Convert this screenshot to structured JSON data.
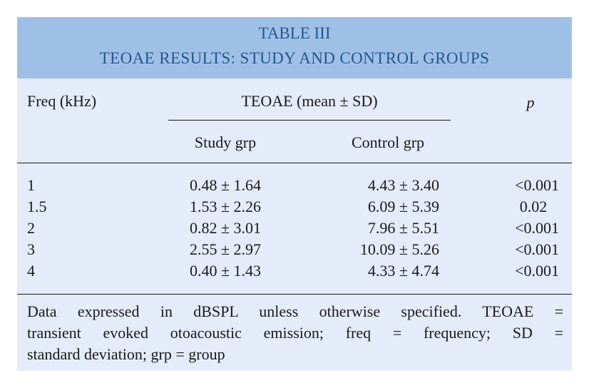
{
  "caption": {
    "line1": "TABLE III",
    "line2": "TEOAE RESULTS: STUDY AND CONTROL GROUPS"
  },
  "header": {
    "freq": "Freq (kHz)",
    "teoae_group": "TEOAE (mean ± SD)",
    "p": "p",
    "study": "Study grp",
    "control": "Control grp"
  },
  "rows": [
    {
      "freq": "1",
      "study": "0.48 ± 1.64",
      "control": "4.43 ± 3.40",
      "p": "<0.001"
    },
    {
      "freq": "1.5",
      "study": "1.53 ± 2.26",
      "control": "6.09 ± 5.39",
      "p": "0.02"
    },
    {
      "freq": "2",
      "study": "0.82 ± 3.01",
      "control": "7.96 ± 5.51",
      "p": "<0.001"
    },
    {
      "freq": "3",
      "study": "2.55 ± 2.97",
      "control": "10.09 ± 5.26",
      "p": "<0.001"
    },
    {
      "freq": "4",
      "study": "0.40 ± 1.43",
      "control": "4.33 ± 4.74",
      "p": "<0.001"
    }
  ],
  "footnote": {
    "line1": "Data expressed in dBSPL unless otherwise specified. TEOAE =",
    "line2": "transient evoked otoacoustic emission; freq = frequency; SD =",
    "line3": "standard deviation; grp = group"
  },
  "colors": {
    "caption_bg": "#9fc0e6",
    "caption_text": "#24558f",
    "table_bg": "#e3ecf8"
  }
}
